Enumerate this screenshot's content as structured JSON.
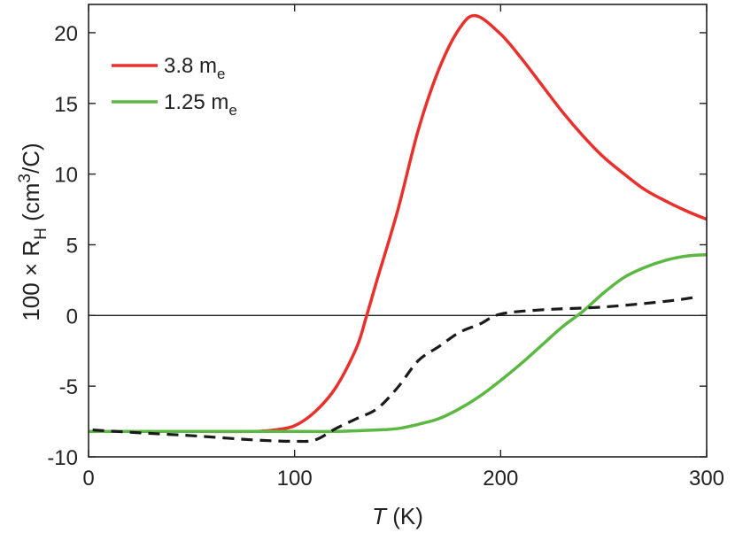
{
  "chart_data": {
    "type": "line",
    "xlabel": {
      "italic": "T",
      "rest": " (K)"
    },
    "ylabel": {
      "prefix": "100 × R",
      "sub": "H",
      "mid": " (cm",
      "sup": "3",
      "suffix": "/C)"
    },
    "xlim": [
      0,
      300
    ],
    "ylim": [
      -10,
      22
    ],
    "xticks": [
      0,
      100,
      200,
      300
    ],
    "yticks": [
      -10,
      -5,
      0,
      5,
      10,
      15,
      20
    ],
    "grid": false,
    "zero_line": true,
    "legend_position": "top-left",
    "series": [
      {
        "name": "3.8 m_e",
        "label_main": "3.8 m",
        "label_sub": "e",
        "color": "#e8312d",
        "style": "solid",
        "in_legend": true,
        "x": [
          0,
          50,
          80,
          90,
          100,
          110,
          120,
          130,
          135,
          140,
          150,
          160,
          170,
          180,
          188,
          200,
          210,
          220,
          230,
          240,
          250,
          260,
          270,
          280,
          290,
          300
        ],
        "y": [
          -8.2,
          -8.2,
          -8.2,
          -8.1,
          -7.8,
          -6.8,
          -5.1,
          -2.3,
          0,
          2.5,
          7.4,
          13.1,
          17.4,
          20.3,
          21.2,
          19.9,
          18.2,
          16.3,
          14.4,
          12.7,
          11.2,
          10.0,
          8.9,
          8.1,
          7.4,
          6.8
        ]
      },
      {
        "name": "1.25 m_e",
        "label_main": "1.25 m",
        "label_sub": "e",
        "color": "#5cb843",
        "style": "solid",
        "in_legend": true,
        "x": [
          0,
          50,
          100,
          120,
          140,
          150,
          160,
          170,
          180,
          190,
          200,
          210,
          220,
          230,
          240,
          250,
          260,
          270,
          280,
          290,
          300
        ],
        "y": [
          -8.2,
          -8.2,
          -8.2,
          -8.2,
          -8.1,
          -8.0,
          -7.7,
          -7.3,
          -6.6,
          -5.7,
          -4.6,
          -3.4,
          -2.1,
          -0.8,
          0.3,
          1.6,
          2.7,
          3.4,
          3.9,
          4.2,
          4.3
        ]
      },
      {
        "color": "#1a1a1a",
        "style": "dashed",
        "in_legend": false,
        "x": [
          2,
          25,
          50,
          80,
          100,
          110,
          120,
          130,
          140,
          150,
          160,
          170,
          180,
          190,
          200,
          220,
          250,
          280,
          295
        ],
        "y": [
          -8.1,
          -8.3,
          -8.5,
          -8.8,
          -8.9,
          -8.8,
          -8.0,
          -7.3,
          -6.6,
          -5.1,
          -3.2,
          -2.2,
          -1.2,
          -0.6,
          0.1,
          0.4,
          0.6,
          1.0,
          1.3
        ]
      }
    ]
  }
}
